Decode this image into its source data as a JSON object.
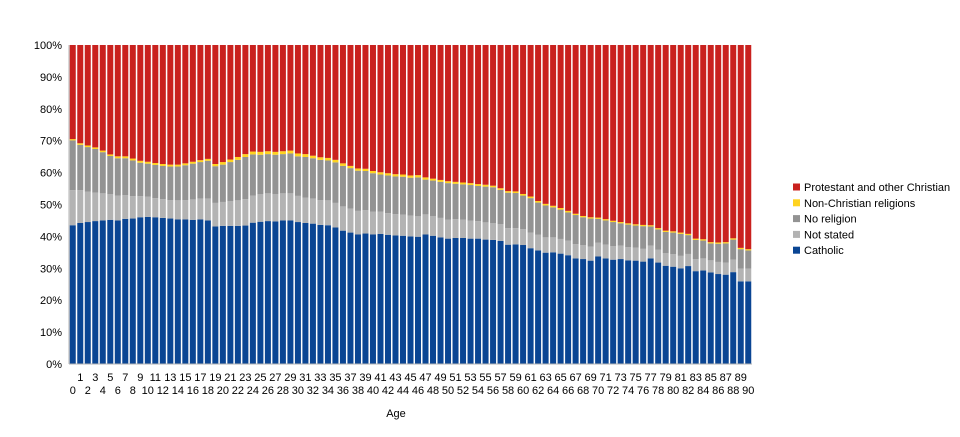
{
  "chart_data": {
    "type": "bar",
    "stacked": true,
    "percent": true,
    "title": "",
    "xlabel": "Age",
    "ylabel": "",
    "ylim": [
      0,
      100
    ],
    "yticks": [
      "0%",
      "10%",
      "20%",
      "30%",
      "40%",
      "50%",
      "60%",
      "70%",
      "80%",
      "90%",
      "100%"
    ],
    "grid": false,
    "legend_position": "right",
    "categories": [
      "0",
      "1",
      "2",
      "3",
      "4",
      "5",
      "6",
      "7",
      "8",
      "9",
      "10",
      "11",
      "12",
      "13",
      "14",
      "15",
      "16",
      "17",
      "18",
      "19",
      "20",
      "21",
      "22",
      "23",
      "24",
      "25",
      "26",
      "27",
      "28",
      "29",
      "30",
      "31",
      "32",
      "33",
      "34",
      "35",
      "36",
      "37",
      "38",
      "39",
      "40",
      "41",
      "42",
      "43",
      "44",
      "45",
      "46",
      "47",
      "48",
      "49",
      "50",
      "51",
      "52",
      "53",
      "54",
      "55",
      "56",
      "57",
      "58",
      "59",
      "60",
      "61",
      "62",
      "63",
      "64",
      "65",
      "66",
      "67",
      "68",
      "69",
      "70",
      "71",
      "72",
      "73",
      "74",
      "75",
      "76",
      "77",
      "78",
      "79",
      "80",
      "81",
      "82",
      "83",
      "84",
      "85",
      "86",
      "87",
      "88",
      "89",
      "90"
    ],
    "series": [
      {
        "name": "Catholic",
        "color": "#0a4593",
        "values": [
          43.5,
          44.2,
          44.5,
          44.8,
          45.0,
          45.2,
          45.0,
          45.5,
          45.6,
          46.0,
          46.1,
          46.0,
          45.8,
          45.6,
          45.3,
          45.3,
          45.2,
          45.3,
          45.0,
          43.1,
          43.3,
          43.3,
          43.3,
          43.4,
          44.3,
          44.6,
          44.8,
          44.7,
          45.0,
          45.0,
          44.5,
          44.2,
          44.0,
          43.6,
          43.5,
          42.8,
          41.8,
          41.2,
          40.6,
          40.9,
          40.6,
          40.8,
          40.5,
          40.3,
          40.2,
          40.0,
          39.9,
          40.6,
          40.2,
          39.7,
          39.3,
          39.5,
          39.5,
          39.3,
          39.3,
          39.0,
          38.9,
          38.6,
          37.4,
          37.5,
          37.3,
          36.3,
          35.6,
          34.9,
          35.0,
          34.6,
          34.1,
          33.1,
          32.9,
          32.4,
          33.7,
          33.1,
          32.7,
          32.9,
          32.5,
          32.4,
          32.1,
          33.1,
          31.8,
          30.8,
          30.5,
          30.0,
          30.7,
          29.1,
          29.3,
          28.7,
          28.2,
          28.0,
          28.8,
          25.9,
          25.9
        ]
      },
      {
        "name": "Not stated",
        "color": "#b3b3b3",
        "values": [
          11.0,
          10.3,
          9.5,
          8.9,
          8.5,
          8.0,
          7.8,
          7.4,
          7.0,
          6.6,
          6.4,
          6.0,
          5.9,
          5.8,
          6.0,
          6.1,
          6.4,
          6.6,
          6.9,
          7.4,
          7.5,
          7.8,
          8.0,
          8.3,
          8.5,
          8.6,
          8.7,
          8.6,
          8.5,
          8.5,
          8.2,
          8.0,
          7.9,
          7.8,
          7.8,
          7.7,
          7.6,
          7.5,
          7.4,
          7.3,
          7.2,
          7.0,
          6.8,
          6.7,
          6.6,
          6.5,
          6.4,
          6.3,
          6.2,
          6.1,
          6.0,
          5.9,
          5.8,
          5.6,
          5.5,
          5.4,
          5.3,
          5.2,
          5.2,
          5.1,
          5.0,
          4.9,
          4.9,
          4.8,
          4.7,
          4.6,
          4.6,
          4.5,
          4.4,
          4.4,
          4.3,
          4.3,
          4.2,
          4.2,
          4.1,
          4.1,
          4.0,
          4.0,
          4.0,
          3.9,
          3.9,
          3.9,
          3.8,
          3.8,
          3.8,
          3.8,
          3.8,
          3.8,
          3.9,
          4.0,
          4.0
        ]
      },
      {
        "name": "No religion",
        "color": "#939393",
        "values": [
          15.6,
          14.2,
          14.0,
          13.7,
          12.9,
          12.0,
          11.7,
          11.6,
          11.2,
          10.5,
          10.3,
          10.4,
          10.4,
          10.5,
          10.6,
          10.9,
          11.2,
          11.4,
          11.8,
          11.5,
          11.7,
          12.2,
          12.7,
          13.2,
          12.9,
          12.4,
          12.3,
          12.3,
          12.3,
          12.5,
          12.4,
          12.7,
          12.6,
          12.6,
          12.5,
          12.7,
          12.7,
          12.7,
          12.6,
          12.3,
          12.0,
          11.6,
          11.8,
          11.8,
          11.9,
          11.9,
          12.2,
          10.9,
          11.1,
          11.3,
          11.4,
          11.1,
          11.0,
          11.2,
          11.0,
          11.2,
          11.2,
          10.8,
          11.1,
          11.0,
          10.5,
          10.8,
          10.1,
          10.0,
          9.4,
          9.2,
          8.8,
          9.1,
          8.7,
          8.8,
          7.5,
          7.6,
          7.6,
          7.0,
          7.1,
          6.9,
          7.1,
          6.0,
          6.4,
          6.7,
          6.8,
          6.9,
          5.9,
          6.0,
          5.6,
          5.3,
          5.7,
          6.0,
          6.3,
          6.1,
          5.7
        ]
      },
      {
        "name": "Non-Christian religions",
        "color": "#ffd320",
        "values": [
          0.4,
          0.5,
          0.5,
          0.5,
          0.5,
          0.5,
          0.6,
          0.6,
          0.6,
          0.6,
          0.6,
          0.6,
          0.6,
          0.6,
          0.6,
          0.6,
          0.6,
          0.6,
          0.6,
          0.7,
          0.8,
          0.8,
          0.9,
          0.9,
          0.9,
          0.9,
          0.9,
          0.9,
          0.9,
          0.9,
          0.9,
          0.9,
          0.8,
          0.8,
          0.8,
          0.8,
          0.8,
          0.7,
          0.7,
          0.7,
          0.7,
          0.7,
          0.7,
          0.7,
          0.7,
          0.7,
          0.7,
          0.7,
          0.6,
          0.6,
          0.6,
          0.6,
          0.6,
          0.6,
          0.6,
          0.6,
          0.5,
          0.5,
          0.5,
          0.5,
          0.5,
          0.5,
          0.5,
          0.5,
          0.5,
          0.5,
          0.5,
          0.4,
          0.4,
          0.4,
          0.4,
          0.4,
          0.4,
          0.4,
          0.4,
          0.4,
          0.4,
          0.4,
          0.4,
          0.4,
          0.4,
          0.4,
          0.4,
          0.4,
          0.4,
          0.4,
          0.4,
          0.4,
          0.4,
          0.4,
          0.4
        ]
      },
      {
        "name": "Protestant and other Christian",
        "color": "#c9211e",
        "values": [
          29.5,
          30.8,
          31.5,
          32.1,
          33.1,
          34.3,
          34.9,
          34.9,
          35.6,
          36.3,
          36.6,
          37.0,
          37.3,
          37.5,
          37.5,
          37.1,
          36.6,
          36.1,
          35.7,
          37.3,
          36.7,
          35.9,
          35.1,
          34.2,
          33.4,
          33.5,
          33.3,
          33.5,
          33.3,
          33.1,
          34.0,
          34.2,
          34.7,
          35.2,
          35.4,
          36.0,
          37.1,
          37.9,
          38.7,
          38.8,
          39.5,
          39.9,
          40.2,
          40.5,
          40.6,
          40.9,
          40.8,
          41.5,
          41.9,
          42.3,
          42.7,
          42.9,
          43.1,
          43.3,
          43.6,
          43.8,
          44.1,
          44.9,
          45.8,
          45.9,
          46.7,
          47.5,
          48.9,
          49.8,
          50.4,
          51.1,
          52.0,
          52.9,
          53.6,
          54.0,
          54.1,
          54.6,
          55.1,
          55.5,
          55.9,
          56.2,
          56.4,
          56.5,
          57.4,
          58.2,
          58.4,
          58.8,
          59.2,
          60.7,
          60.9,
          61.8,
          61.9,
          61.8,
          60.6,
          63.6,
          64.0
        ]
      }
    ],
    "legend_order": [
      "Protestant and other Christian",
      "Non-Christian religions",
      "No religion",
      "Not stated",
      "Catholic"
    ]
  }
}
